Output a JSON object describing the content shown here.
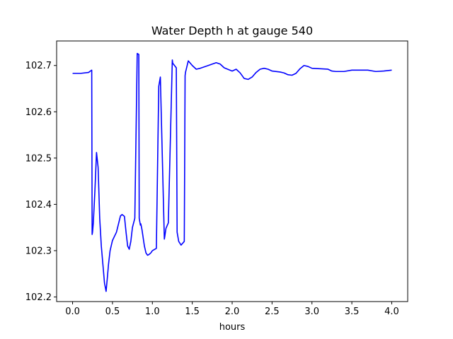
{
  "chart_data": {
    "type": "line",
    "title": "Water Depth h at gauge 540",
    "xlabel": "hours",
    "ylabel": "",
    "xlim": [
      -0.2,
      4.2
    ],
    "ylim": [
      102.19,
      102.753
    ],
    "grid": false,
    "x_ticks": [
      0.0,
      0.5,
      1.0,
      1.5,
      2.0,
      2.5,
      3.0,
      3.5,
      4.0
    ],
    "x_tick_labels": [
      "0.0",
      "0.5",
      "1.0",
      "1.5",
      "2.0",
      "2.5",
      "3.0",
      "3.5",
      "4.0"
    ],
    "y_ticks": [
      102.2,
      102.3,
      102.4,
      102.5,
      102.6,
      102.7
    ],
    "y_tick_labels": [
      "102.2",
      "102.3",
      "102.4",
      "102.5",
      "102.6",
      "102.7"
    ],
    "series": [
      {
        "color": "#0000ff",
        "x": [
          0.0,
          0.1,
          0.2,
          0.24,
          0.245,
          0.25,
          0.26,
          0.28,
          0.3,
          0.32,
          0.34,
          0.36,
          0.38,
          0.4,
          0.42,
          0.435,
          0.45,
          0.47,
          0.5,
          0.55,
          0.6,
          0.62,
          0.65,
          0.67,
          0.69,
          0.71,
          0.73,
          0.75,
          0.78,
          0.81,
          0.83,
          0.835,
          0.85,
          0.855,
          0.86,
          0.87,
          0.9,
          0.92,
          0.94,
          0.96,
          0.98,
          1.0,
          1.05,
          1.08,
          1.085,
          1.1,
          1.15,
          1.155,
          1.17,
          1.2,
          1.25,
          1.255,
          1.3,
          1.31,
          1.33,
          1.36,
          1.4,
          1.41,
          1.415,
          1.45,
          1.5,
          1.55,
          1.6,
          1.7,
          1.8,
          1.85,
          1.9,
          2.0,
          2.05,
          2.1,
          2.15,
          2.2,
          2.25,
          2.3,
          2.35,
          2.4,
          2.45,
          2.5,
          2.6,
          2.65,
          2.7,
          2.75,
          2.8,
          2.85,
          2.9,
          2.95,
          3.0,
          3.1,
          3.2,
          3.25,
          3.3,
          3.4,
          3.5,
          3.6,
          3.7,
          3.8,
          3.9,
          4.0
        ],
        "y": [
          102.683,
          102.683,
          102.685,
          102.69,
          102.335,
          102.34,
          102.36,
          102.43,
          102.512,
          102.48,
          102.37,
          102.31,
          102.27,
          102.23,
          102.212,
          102.24,
          102.27,
          102.3,
          102.322,
          102.34,
          102.375,
          102.378,
          102.374,
          102.34,
          102.31,
          102.303,
          102.32,
          102.35,
          102.37,
          102.726,
          102.724,
          102.37,
          102.355,
          102.358,
          102.354,
          102.345,
          102.31,
          102.295,
          102.29,
          102.292,
          102.295,
          102.3,
          102.305,
          102.655,
          102.66,
          102.675,
          102.325,
          102.33,
          102.348,
          102.36,
          102.712,
          102.705,
          102.695,
          102.34,
          102.32,
          102.312,
          102.32,
          102.678,
          102.685,
          102.71,
          102.7,
          102.692,
          102.694,
          102.7,
          102.706,
          102.703,
          102.695,
          102.688,
          102.692,
          102.684,
          102.672,
          102.67,
          102.675,
          102.685,
          102.692,
          102.694,
          102.692,
          102.688,
          102.686,
          102.684,
          102.68,
          102.679,
          102.683,
          102.693,
          102.7,
          102.698,
          102.694,
          102.693,
          102.692,
          102.688,
          102.687,
          102.687,
          102.69,
          102.69,
          102.69,
          102.687,
          102.688,
          102.69
        ]
      }
    ]
  }
}
